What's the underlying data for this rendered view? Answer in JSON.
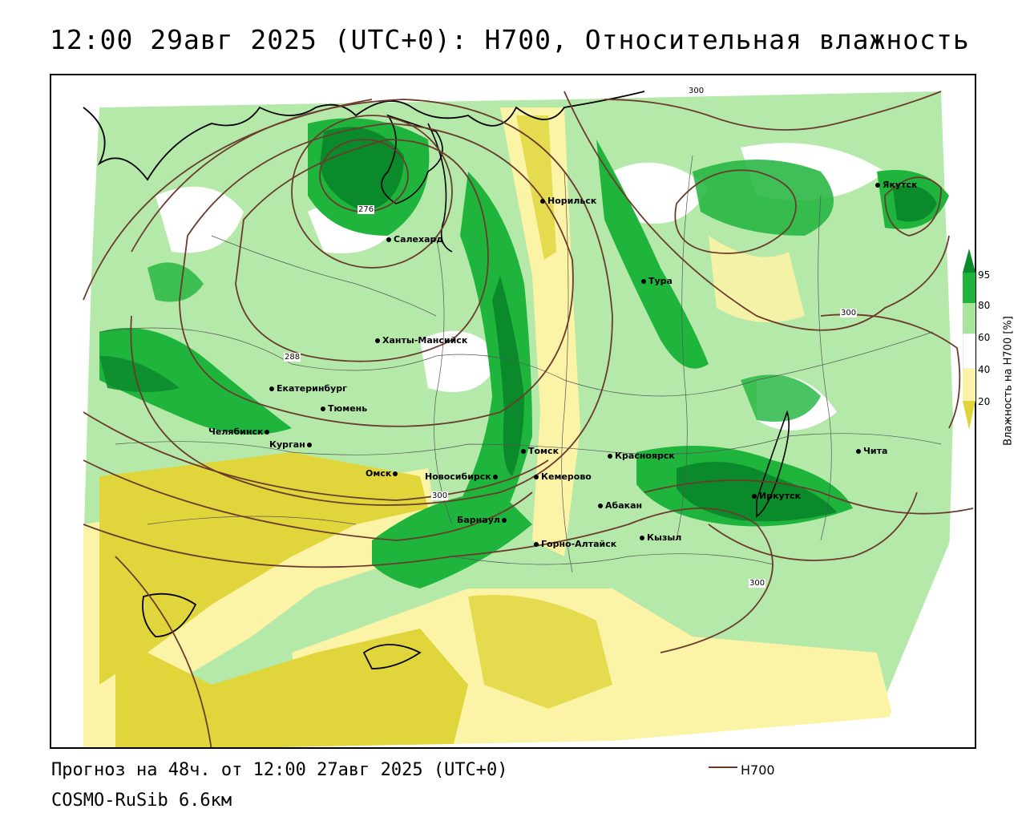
{
  "title": "12:00 29авг 2025 (UTC+0): H700, Относительная влажность",
  "forecast_line": "Прогноз на 48ч. от 12:00 27авг 2025 (UTC+0)",
  "model_line": "COSMO-RuSib 6.6км",
  "legend": {
    "line_label": "H700",
    "line_color": "#6b3b2e"
  },
  "colorbar": {
    "title": "Влажность на H700 [%]",
    "ticks": [
      "95",
      "80",
      "60",
      "40",
      "20"
    ],
    "colors": {
      "band_95": "#0a8a2a",
      "band_80_95": "#1fb43c",
      "band_60_80": "#a7e59a",
      "band_40_60": "#ffffff",
      "band_20_40": "#fbf3a6",
      "band_below_20": "#e0d53a"
    }
  },
  "isohypse_labels": [
    "276",
    "288",
    "300",
    "300",
    "300",
    "300"
  ],
  "cities": [
    {
      "name": "Норильск"
    },
    {
      "name": "Салехард"
    },
    {
      "name": "Якутск"
    },
    {
      "name": "Тура"
    },
    {
      "name": "Ханты-Мансийск"
    },
    {
      "name": "Екатеринбург"
    },
    {
      "name": "Тюмень"
    },
    {
      "name": "Челябинск"
    },
    {
      "name": "Курган"
    },
    {
      "name": "Омск"
    },
    {
      "name": "Новосибирск"
    },
    {
      "name": "Томск"
    },
    {
      "name": "Кемерово"
    },
    {
      "name": "Красноярск"
    },
    {
      "name": "Барнаул"
    },
    {
      "name": "Абакан"
    },
    {
      "name": "Горно-Алтайск"
    },
    {
      "name": "Кызыл"
    },
    {
      "name": "Иркутск"
    },
    {
      "name": "Чита"
    }
  ]
}
